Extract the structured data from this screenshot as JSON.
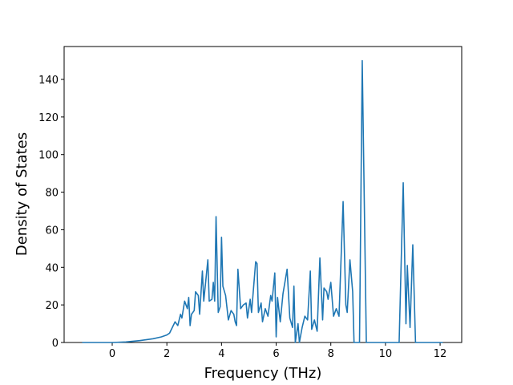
{
  "chart_data": {
    "type": "line",
    "xlabel": "Frequency (THz)",
    "ylabel": "Density of States",
    "x": [
      -1.1,
      0,
      0.5,
      1.0,
      1.5,
      1.8,
      2.0,
      2.1,
      2.2,
      2.3,
      2.4,
      2.5,
      2.55,
      2.65,
      2.75,
      2.8,
      2.85,
      2.9,
      3.0,
      3.05,
      3.15,
      3.2,
      3.3,
      3.35,
      3.5,
      3.55,
      3.65,
      3.7,
      3.75,
      3.8,
      3.88,
      3.95,
      4.0,
      4.05,
      4.15,
      4.25,
      4.35,
      4.45,
      4.5,
      4.55,
      4.6,
      4.7,
      4.8,
      4.9,
      4.95,
      5.05,
      5.1,
      5.25,
      5.3,
      5.35,
      5.45,
      5.5,
      5.6,
      5.7,
      5.8,
      5.85,
      5.95,
      6.0,
      6.05,
      6.15,
      6.25,
      6.4,
      6.5,
      6.6,
      6.65,
      6.7,
      6.8,
      6.85,
      6.95,
      7.05,
      7.15,
      7.25,
      7.3,
      7.4,
      7.5,
      7.6,
      7.7,
      7.75,
      7.85,
      7.9,
      8.0,
      8.1,
      8.2,
      8.3,
      8.45,
      8.55,
      8.6,
      8.7,
      8.8,
      8.85,
      9.05,
      9.15,
      9.3,
      10.5,
      10.65,
      10.75,
      10.8,
      10.9,
      11.0,
      11.1,
      12.1
    ],
    "series": [
      {
        "color": "#1f77b4",
        "values": [
          0,
          0,
          0.3,
          1,
          2,
          3,
          4,
          5,
          8,
          11,
          9,
          15,
          13,
          22,
          18,
          24,
          9,
          15,
          17,
          27,
          25,
          15,
          38,
          22,
          44,
          22,
          23,
          32,
          22,
          67,
          16,
          19,
          56,
          30,
          25,
          12,
          17,
          15,
          11,
          9,
          39,
          18,
          20,
          21,
          13,
          23,
          16,
          43,
          42,
          16,
          21,
          11,
          18,
          14,
          25,
          22,
          37,
          3,
          24,
          11,
          26,
          39,
          13,
          8,
          30,
          0,
          10,
          0,
          8,
          14,
          12,
          38,
          7,
          12,
          6,
          45,
          12,
          29,
          27,
          23,
          32,
          14,
          18,
          14,
          75,
          20,
          16,
          44,
          27,
          0,
          0,
          150,
          0,
          0,
          85,
          10,
          41,
          8,
          52,
          0,
          0
        ]
      }
    ],
    "xlim": [
      -1.76,
      12.79
    ],
    "ylim": [
      0,
      157.5
    ],
    "xticks": [
      0,
      2,
      4,
      6,
      8,
      10,
      12
    ],
    "yticks": [
      0,
      20,
      40,
      60,
      80,
      100,
      120,
      140
    ]
  }
}
